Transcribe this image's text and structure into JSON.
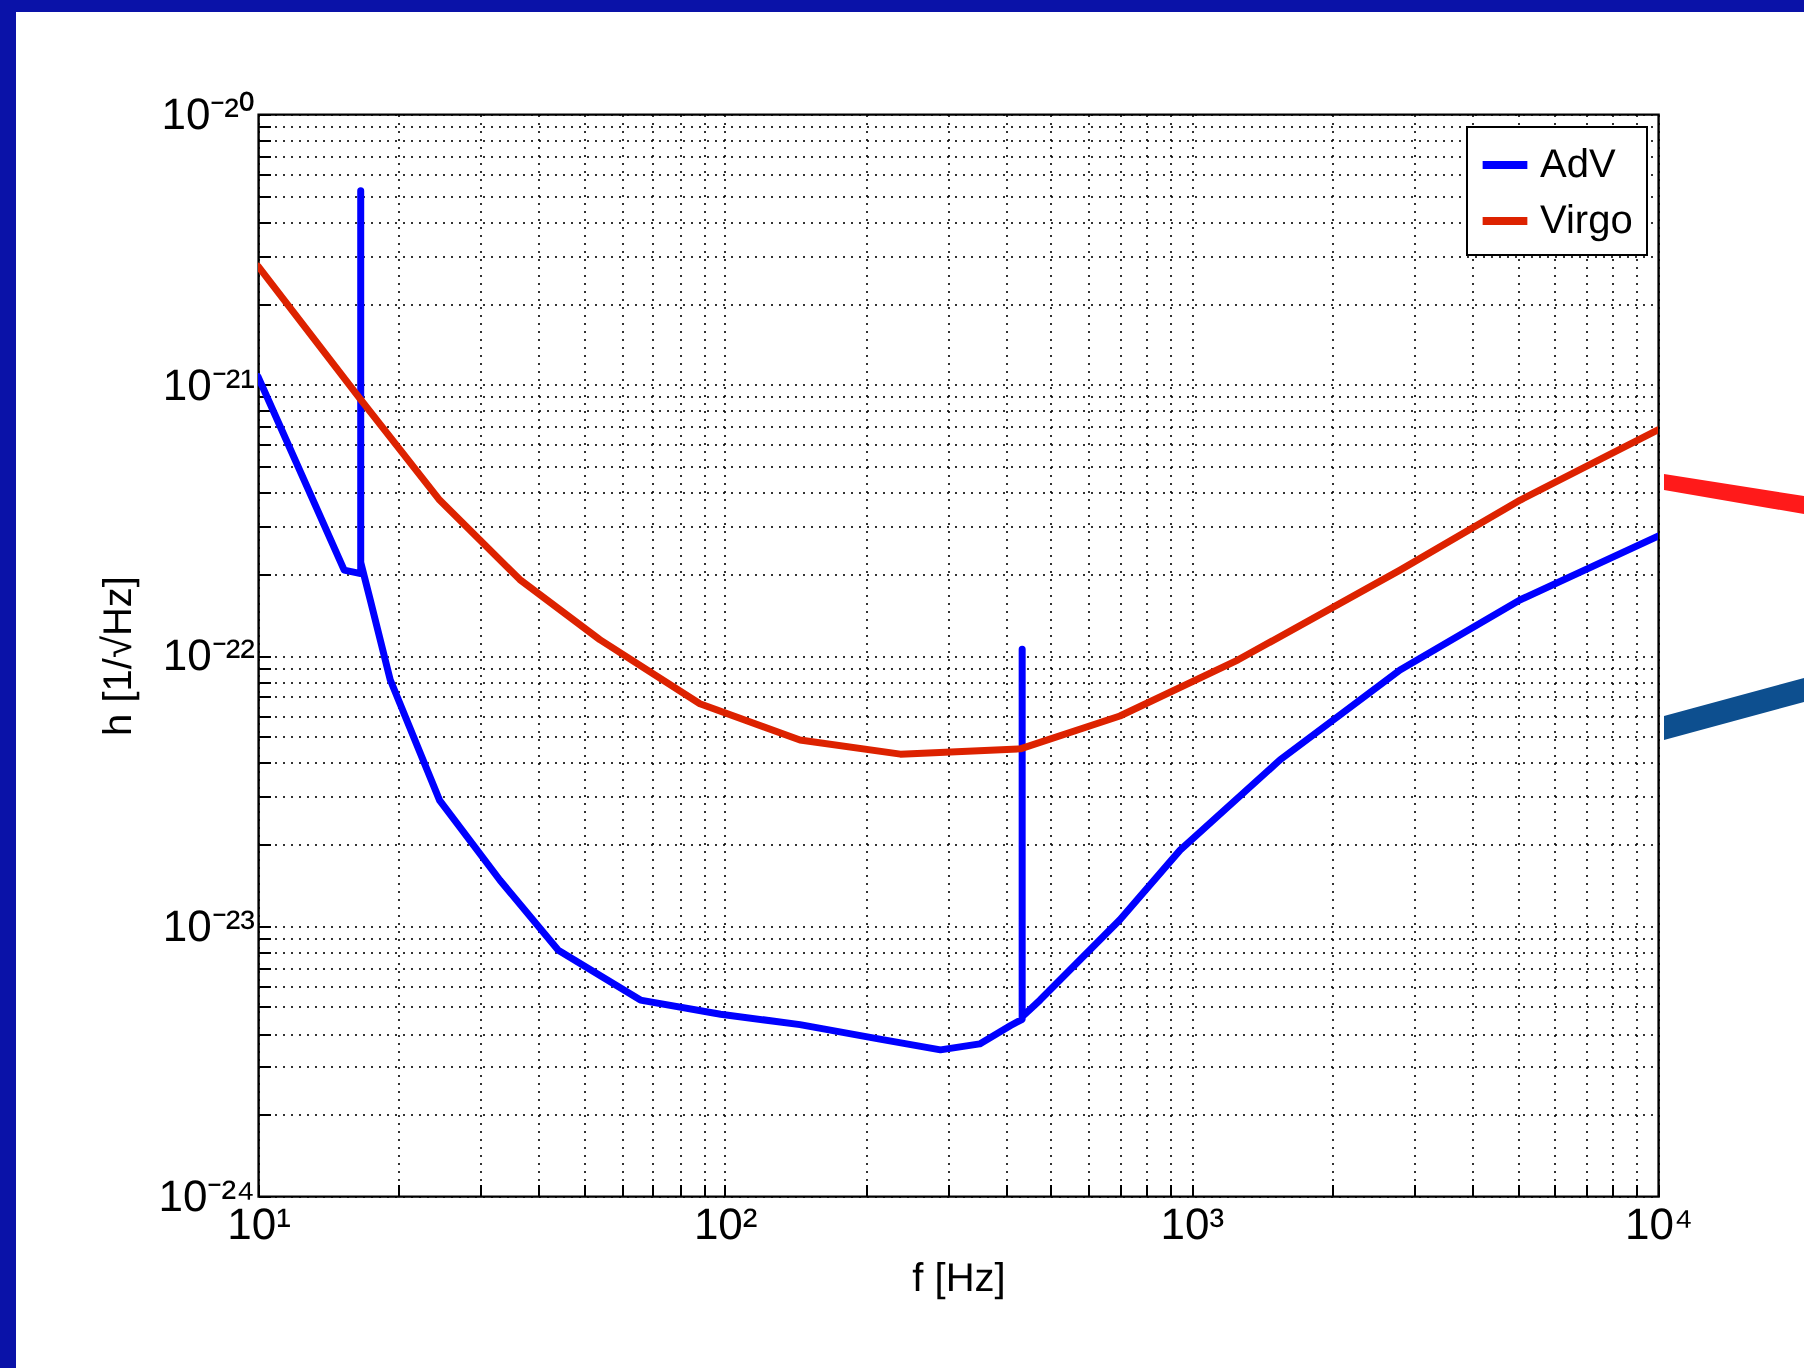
{
  "chart_data": {
    "type": "line",
    "xlabel": "f [Hz]",
    "ylabel": "h [1/√Hz]",
    "log": "xy",
    "grid": true,
    "legend": "top right",
    "line_style": "solid",
    "marker": "none",
    "xlim": [
      10,
      10000
    ],
    "ylim": [
      1e-24,
      1e-20
    ],
    "xticks": [
      {
        "value": 10,
        "label": "10¹"
      },
      {
        "value": 100,
        "label": "10²"
      },
      {
        "value": 1000,
        "label": "10³"
      },
      {
        "value": 10000,
        "label": "10⁴"
      }
    ],
    "yticks": [
      {
        "value": 1e-24,
        "label": "10⁻²⁴"
      },
      {
        "value": 1e-23,
        "label": "10⁻²³"
      },
      {
        "value": 1e-22,
        "label": "10⁻²²"
      },
      {
        "value": 1e-21,
        "label": "10⁻²¹"
      },
      {
        "value": 1e-20,
        "label": "10⁻²⁰"
      }
    ],
    "series": [
      {
        "name": "AdV",
        "color": "#0000ff",
        "x": [
          10,
          15.3,
          16.6,
          16.6,
          16.6,
          17.4,
          19.2,
          24.5,
          33,
          44,
          66,
          98,
          145,
          215,
          290,
          352,
          410,
          434,
          434,
          434,
          474,
          703,
          946,
          1550,
          2800,
          5070,
          10000
        ],
        "values": [
          1.07e-21,
          2.06e-22,
          2e-22,
          5.2e-21,
          2.2e-22,
          1.6e-22,
          8.1e-23,
          2.9e-23,
          1.47e-23,
          8.1e-24,
          5.3e-24,
          4.7e-24,
          4.3e-24,
          3.8e-24,
          3.47e-24,
          3.65e-24,
          4.27e-24,
          4.5e-24,
          1.05e-22,
          4.6e-24,
          5.3e-24,
          1.05e-23,
          1.9e-23,
          4.1e-23,
          8.8e-23,
          1.6e-22,
          2.75e-22
        ]
      },
      {
        "name": "Virgo",
        "color": "#dd2200",
        "x": [
          10,
          16.6,
          24.5,
          36.4,
          54,
          88.5,
          145,
          238,
          430,
          703,
          1260,
          2800,
          5070,
          10000
        ],
        "values": [
          2.74e-21,
          8.8e-22,
          3.74e-22,
          1.9e-22,
          1.14e-22,
          6.6e-23,
          4.85e-23,
          4.3e-23,
          4.5e-23,
          5.95e-23,
          9.6e-23,
          2.06e-22,
          3.74e-22,
          6.8e-22
        ]
      }
    ]
  }
}
